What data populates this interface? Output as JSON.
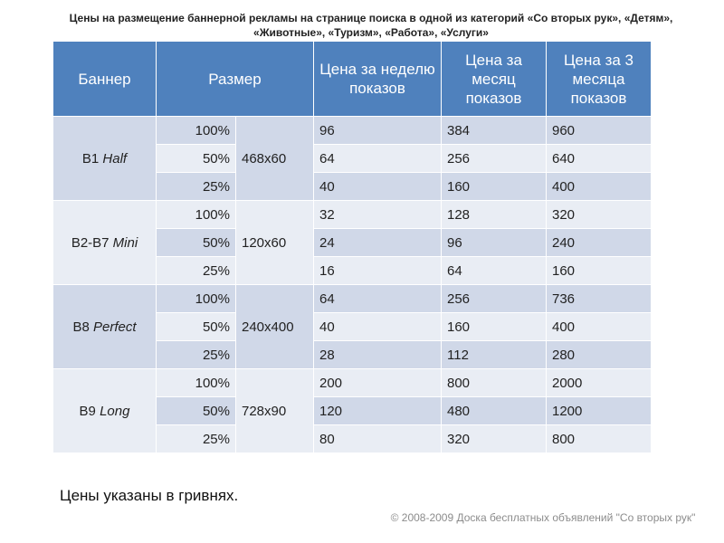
{
  "title": "Цены на размещение баннерной рекламы на странице поиска в одной из категорий «Со вторых рук», «Детям», «Животные», «Туризм», «Работа», «Услуги»",
  "table": {
    "headers": {
      "banner": "Баннер",
      "size": "Размер",
      "week": "Цена за неделю показов",
      "month": "Цена за месяц показов",
      "three_months": "Цена за 3 месяца показов"
    },
    "groups": [
      {
        "code": "B1 ",
        "name": "Half",
        "size": "468x60",
        "rows": [
          {
            "pct": "100%",
            "week": "96",
            "month": "384",
            "three": "960"
          },
          {
            "pct": "50%",
            "week": "64",
            "month": "256",
            "three": "640"
          },
          {
            "pct": "25%",
            "week": "40",
            "month": "160",
            "three": "400"
          }
        ]
      },
      {
        "code": "B2-B7 ",
        "name": "Mini",
        "size": "120x60",
        "rows": [
          {
            "pct": "100%",
            "week": "32",
            "month": "128",
            "three": "320"
          },
          {
            "pct": "50%",
            "week": "24",
            "month": "96",
            "three": "240"
          },
          {
            "pct": "25%",
            "week": "16",
            "month": "64",
            "three": "160"
          }
        ]
      },
      {
        "code": "B8 ",
        "name": "Perfect",
        "size": "240x400",
        "rows": [
          {
            "pct": "100%",
            "week": "64",
            "month": "256",
            "three": "736"
          },
          {
            "pct": "50%",
            "week": "40",
            "month": "160",
            "three": "400"
          },
          {
            "pct": "25%",
            "week": "28",
            "month": "112",
            "three": "280"
          }
        ]
      },
      {
        "code": "B9 ",
        "name": "Long",
        "size": "728x90",
        "rows": [
          {
            "pct": "100%",
            "week": "200",
            "month": "800",
            "three": "2000"
          },
          {
            "pct": "50%",
            "week": "120",
            "month": "480",
            "three": "1200"
          },
          {
            "pct": "25%",
            "week": "80",
            "month": "320",
            "three": "800"
          }
        ]
      }
    ]
  },
  "note": "Цены указаны в гривнях.",
  "copyright": "© 2008-2009 Доска бесплатных объявлений \"Со вторых рук\""
}
